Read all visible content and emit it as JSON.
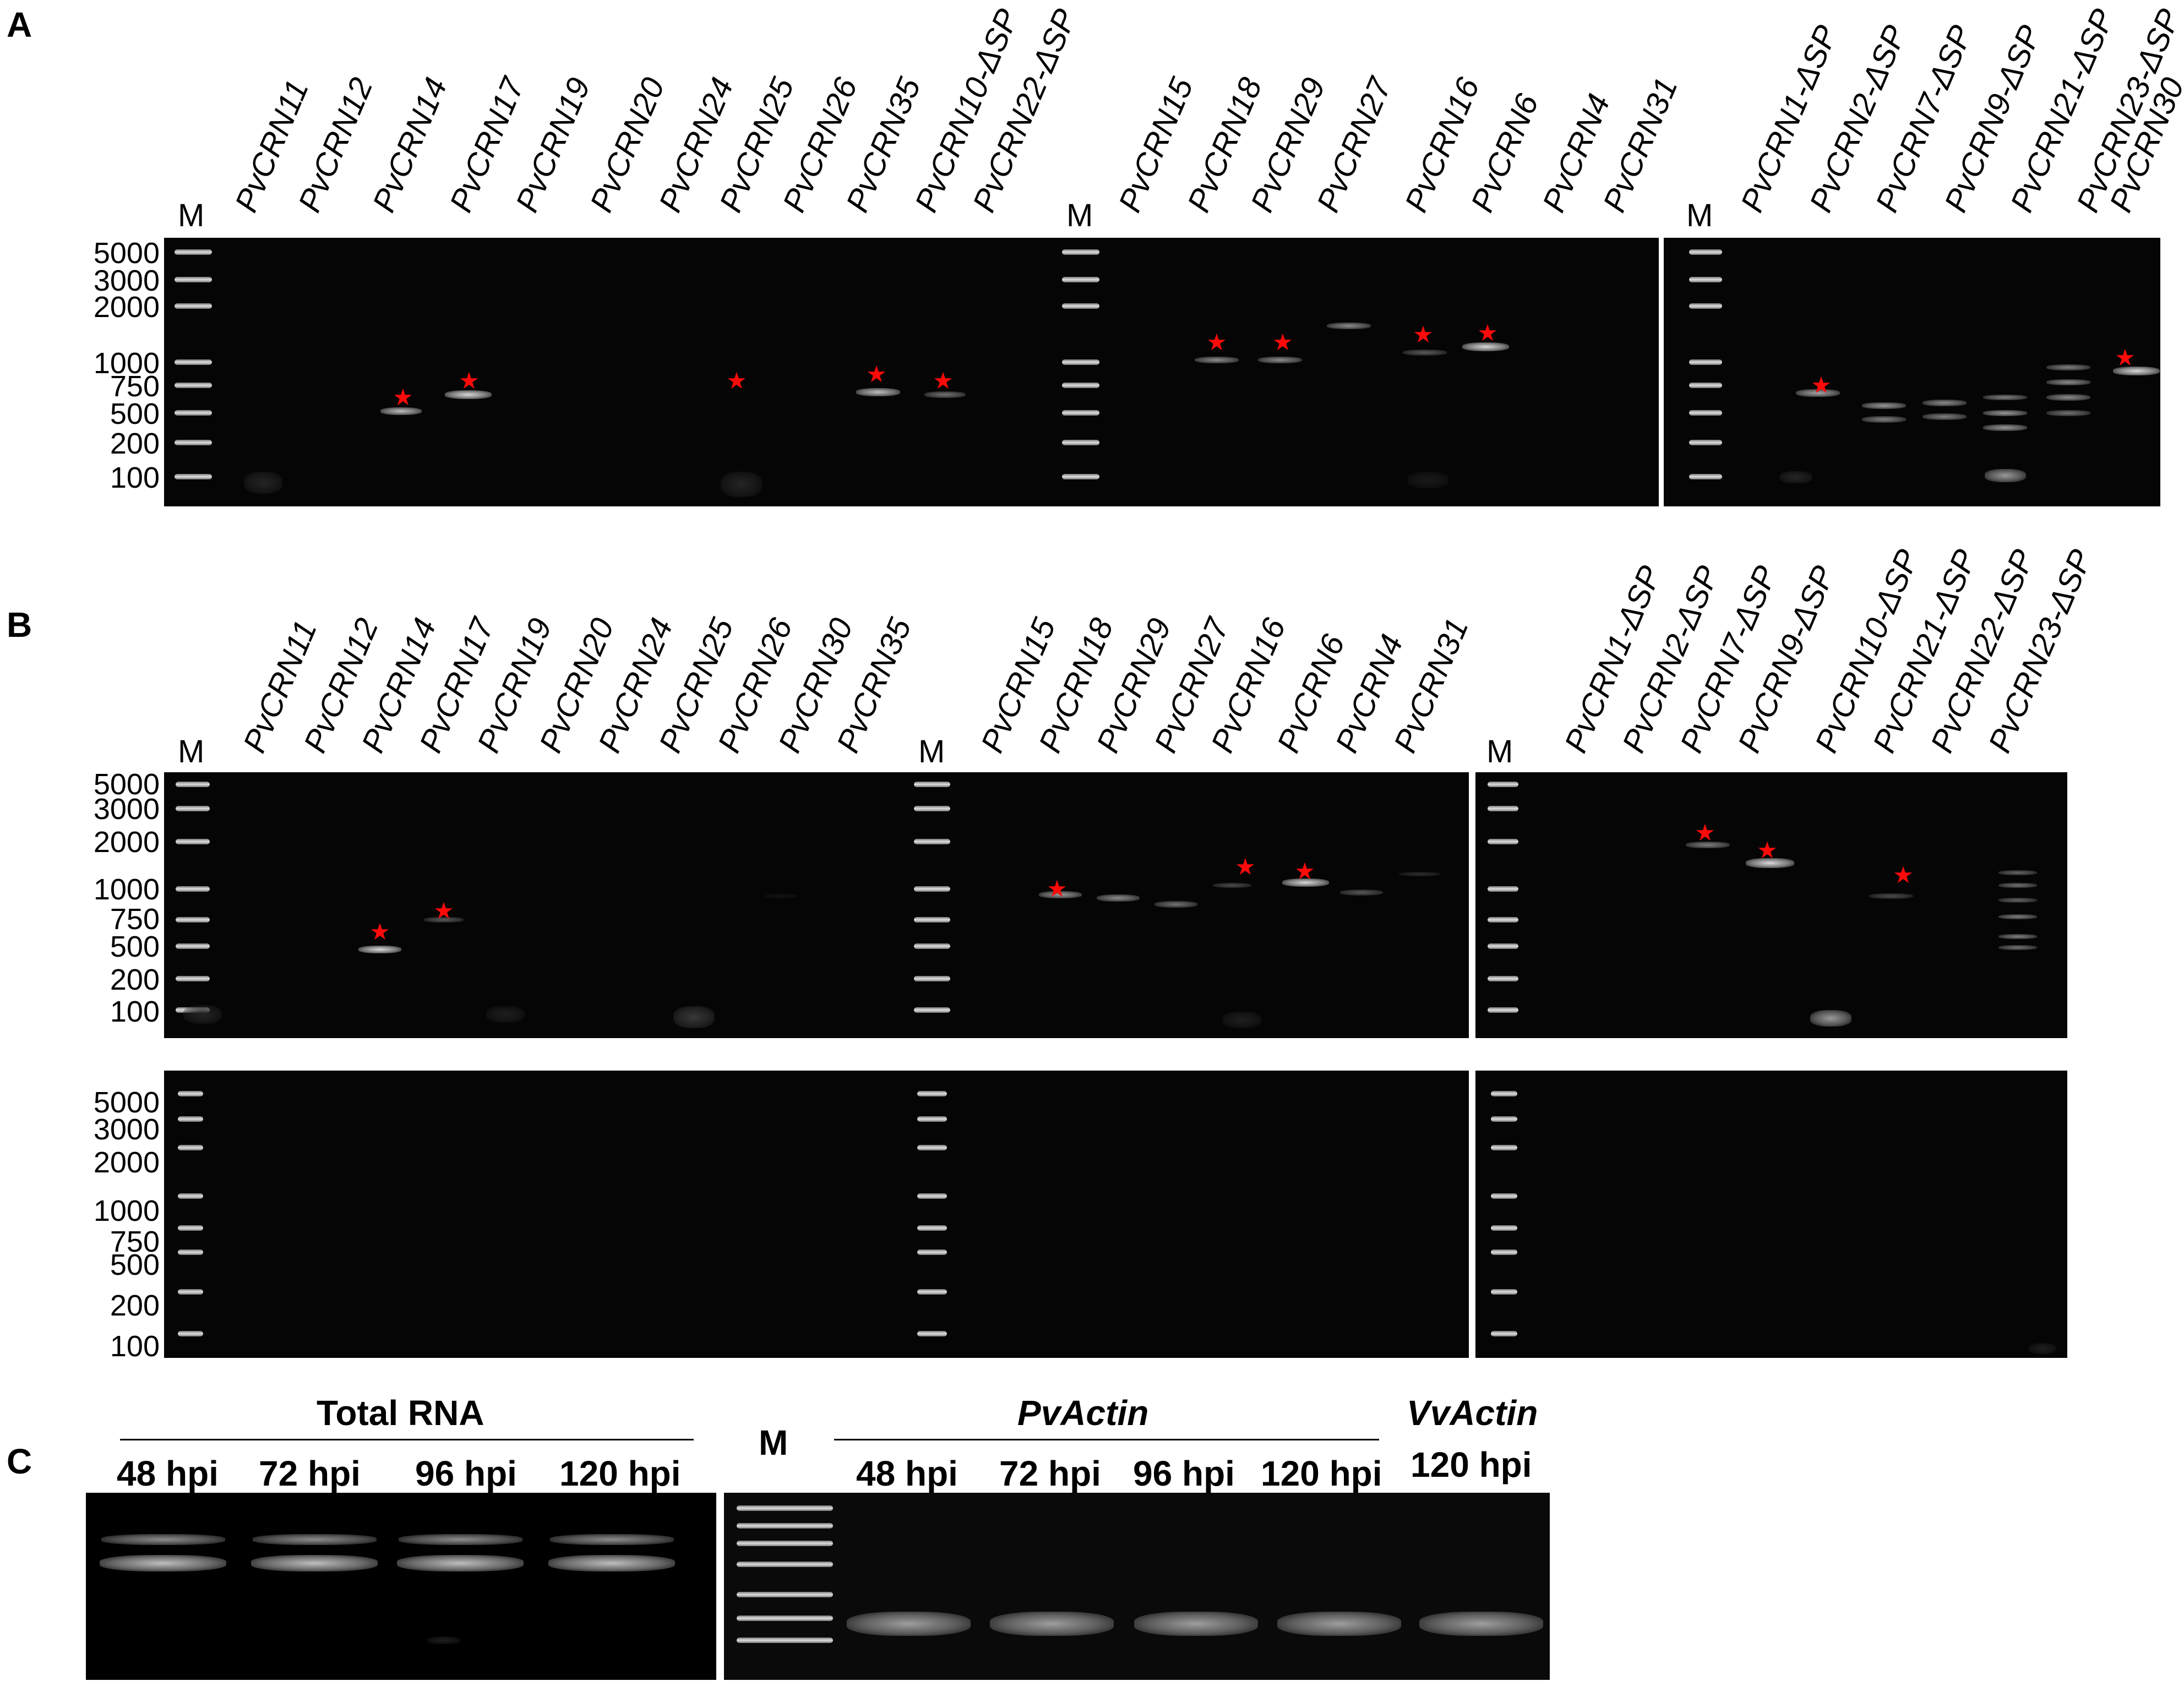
{
  "panelA": {
    "letter": "A",
    "marker": "M",
    "sizes": [
      "5000",
      "3000",
      "2000",
      "1000",
      "750",
      "500",
      "200",
      "100"
    ],
    "gel1_lanes": [
      "PvCRN11",
      "PvCRN12",
      "PvCRN14",
      "PvCRN17",
      "PvCRN19",
      "PvCRN20",
      "PvCRN24",
      "PvCRN25",
      "PvCRN26",
      "PvCRN35",
      "PvCRN10-ΔSP",
      "PvCRN22-ΔSP"
    ],
    "gel1b_lanes": [
      "PvCRN15",
      "PvCRN18",
      "PvCRN29",
      "PvCRN27",
      "PvCRN16",
      "PvCRN6",
      "PvCRN4",
      "PvCRN31"
    ],
    "gel2_lanes": [
      "PvCRN1-ΔSP",
      "PvCRN2-ΔSP",
      "PvCRN7-ΔSP",
      "PvCRN9-ΔSP",
      "PvCRN21-ΔSP",
      "PvCRN23-ΔSP",
      "PvCRN30"
    ]
  },
  "panelB": {
    "letter": "B",
    "marker": "M",
    "sizes": [
      "5000",
      "3000",
      "2000",
      "1000",
      "750",
      "500",
      "200",
      "100"
    ],
    "gel1_lanes": [
      "PvCRN11",
      "PvCRN12",
      "PvCRN14",
      "PvCRN17",
      "PvCRN19",
      "PvCRN20",
      "PvCRN24",
      "PvCRN25",
      "PvCRN26",
      "PvCRN30",
      "PvCRN35"
    ],
    "gel1b_lanes": [
      "PvCRN15",
      "PvCRN18",
      "PvCRN29",
      "PvCRN27",
      "PvCRN16",
      "PvCRN6",
      "PvCRN4",
      "PvCRN31"
    ],
    "gel2_lanes": [
      "PvCRN1-ΔSP",
      "PvCRN2-ΔSP",
      "PvCRN7-ΔSP",
      "PvCRN9-ΔSP",
      "PvCRN10-ΔSP",
      "PvCRN21-ΔSP",
      "PvCRN22-ΔSP",
      "PvCRN23-ΔSP"
    ]
  },
  "panelC": {
    "letter": "C",
    "marker": "M",
    "total_rna": "Total RNA",
    "pvactin": "PvActin",
    "vvactin": "VvActin",
    "rna_times": [
      "48 hpi",
      "72 hpi",
      "96 hpi",
      "120 hpi"
    ],
    "pv_times": [
      "48 hpi",
      "72 hpi",
      "96 hpi",
      "120 hpi"
    ],
    "vv_time": "120 hpi"
  },
  "colors": {
    "gel_background": "#050505",
    "band": "#d8d8d8",
    "star": "#ff0a0a"
  }
}
